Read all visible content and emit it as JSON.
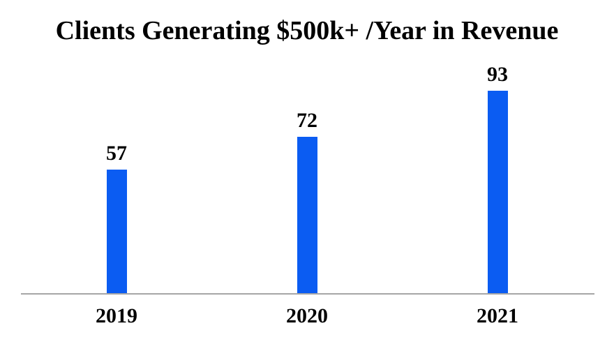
{
  "chart_data": {
    "type": "bar",
    "title": "Clients Generating $500k+ /Year in Revenue",
    "categories": [
      "2019",
      "2020",
      "2021"
    ],
    "values": [
      57,
      72,
      93
    ],
    "xlabel": "",
    "ylabel": "",
    "ylim": [
      0,
      100
    ],
    "grid": false,
    "legend": false,
    "data_labels_shown": true,
    "bar_color": "#0B5CF2",
    "axis_line_color": "#A6A6A6",
    "text_color": "#000000",
    "background_color": "#FFFFFF"
  }
}
